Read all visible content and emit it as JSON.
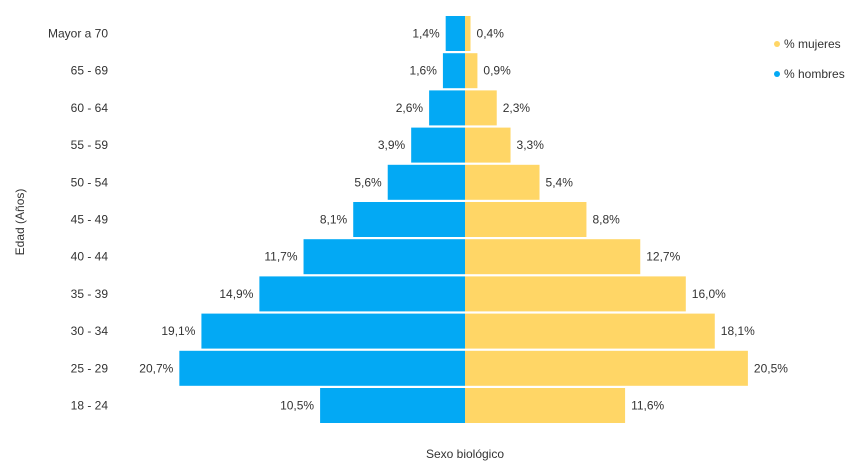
{
  "chart_data": {
    "type": "bar",
    "orientation": "horizontal",
    "layout": "population-pyramid",
    "categories": [
      "Mayor a 70",
      "65 - 69",
      "60 - 64",
      "55 - 59",
      "50 - 54",
      "45 - 49",
      "40 - 44",
      "35 - 39",
      "30 - 34",
      "25 - 29",
      "18 - 24"
    ],
    "series": [
      {
        "name": "% mujeres",
        "side": "right",
        "color": "#FFD666",
        "values": [
          0.4,
          0.9,
          2.3,
          3.3,
          5.4,
          8.8,
          12.7,
          16.0,
          18.1,
          20.5,
          11.6
        ],
        "labels": [
          "0,4%",
          "0,9%",
          "2,3%",
          "3,3%",
          "5,4%",
          "8,8%",
          "12,7%",
          "16,0%",
          "18,1%",
          "20,5%",
          "11,6%"
        ]
      },
      {
        "name": "% hombres",
        "side": "left",
        "color": "#03A9F4",
        "values": [
          1.4,
          1.6,
          2.6,
          3.9,
          5.6,
          8.1,
          11.7,
          14.9,
          19.1,
          20.7,
          10.5
        ],
        "labels": [
          "1,4%",
          "1,6%",
          "2,6%",
          "3,9%",
          "5,6%",
          "8,1%",
          "11,7%",
          "14,9%",
          "19,1%",
          "20,7%",
          "10,5%"
        ]
      }
    ],
    "xlabel": "Sexo biológico",
    "ylabel": "Edad (Años)",
    "xlim": [
      -21,
      21
    ],
    "legend_position": "top-right",
    "grid": false
  }
}
